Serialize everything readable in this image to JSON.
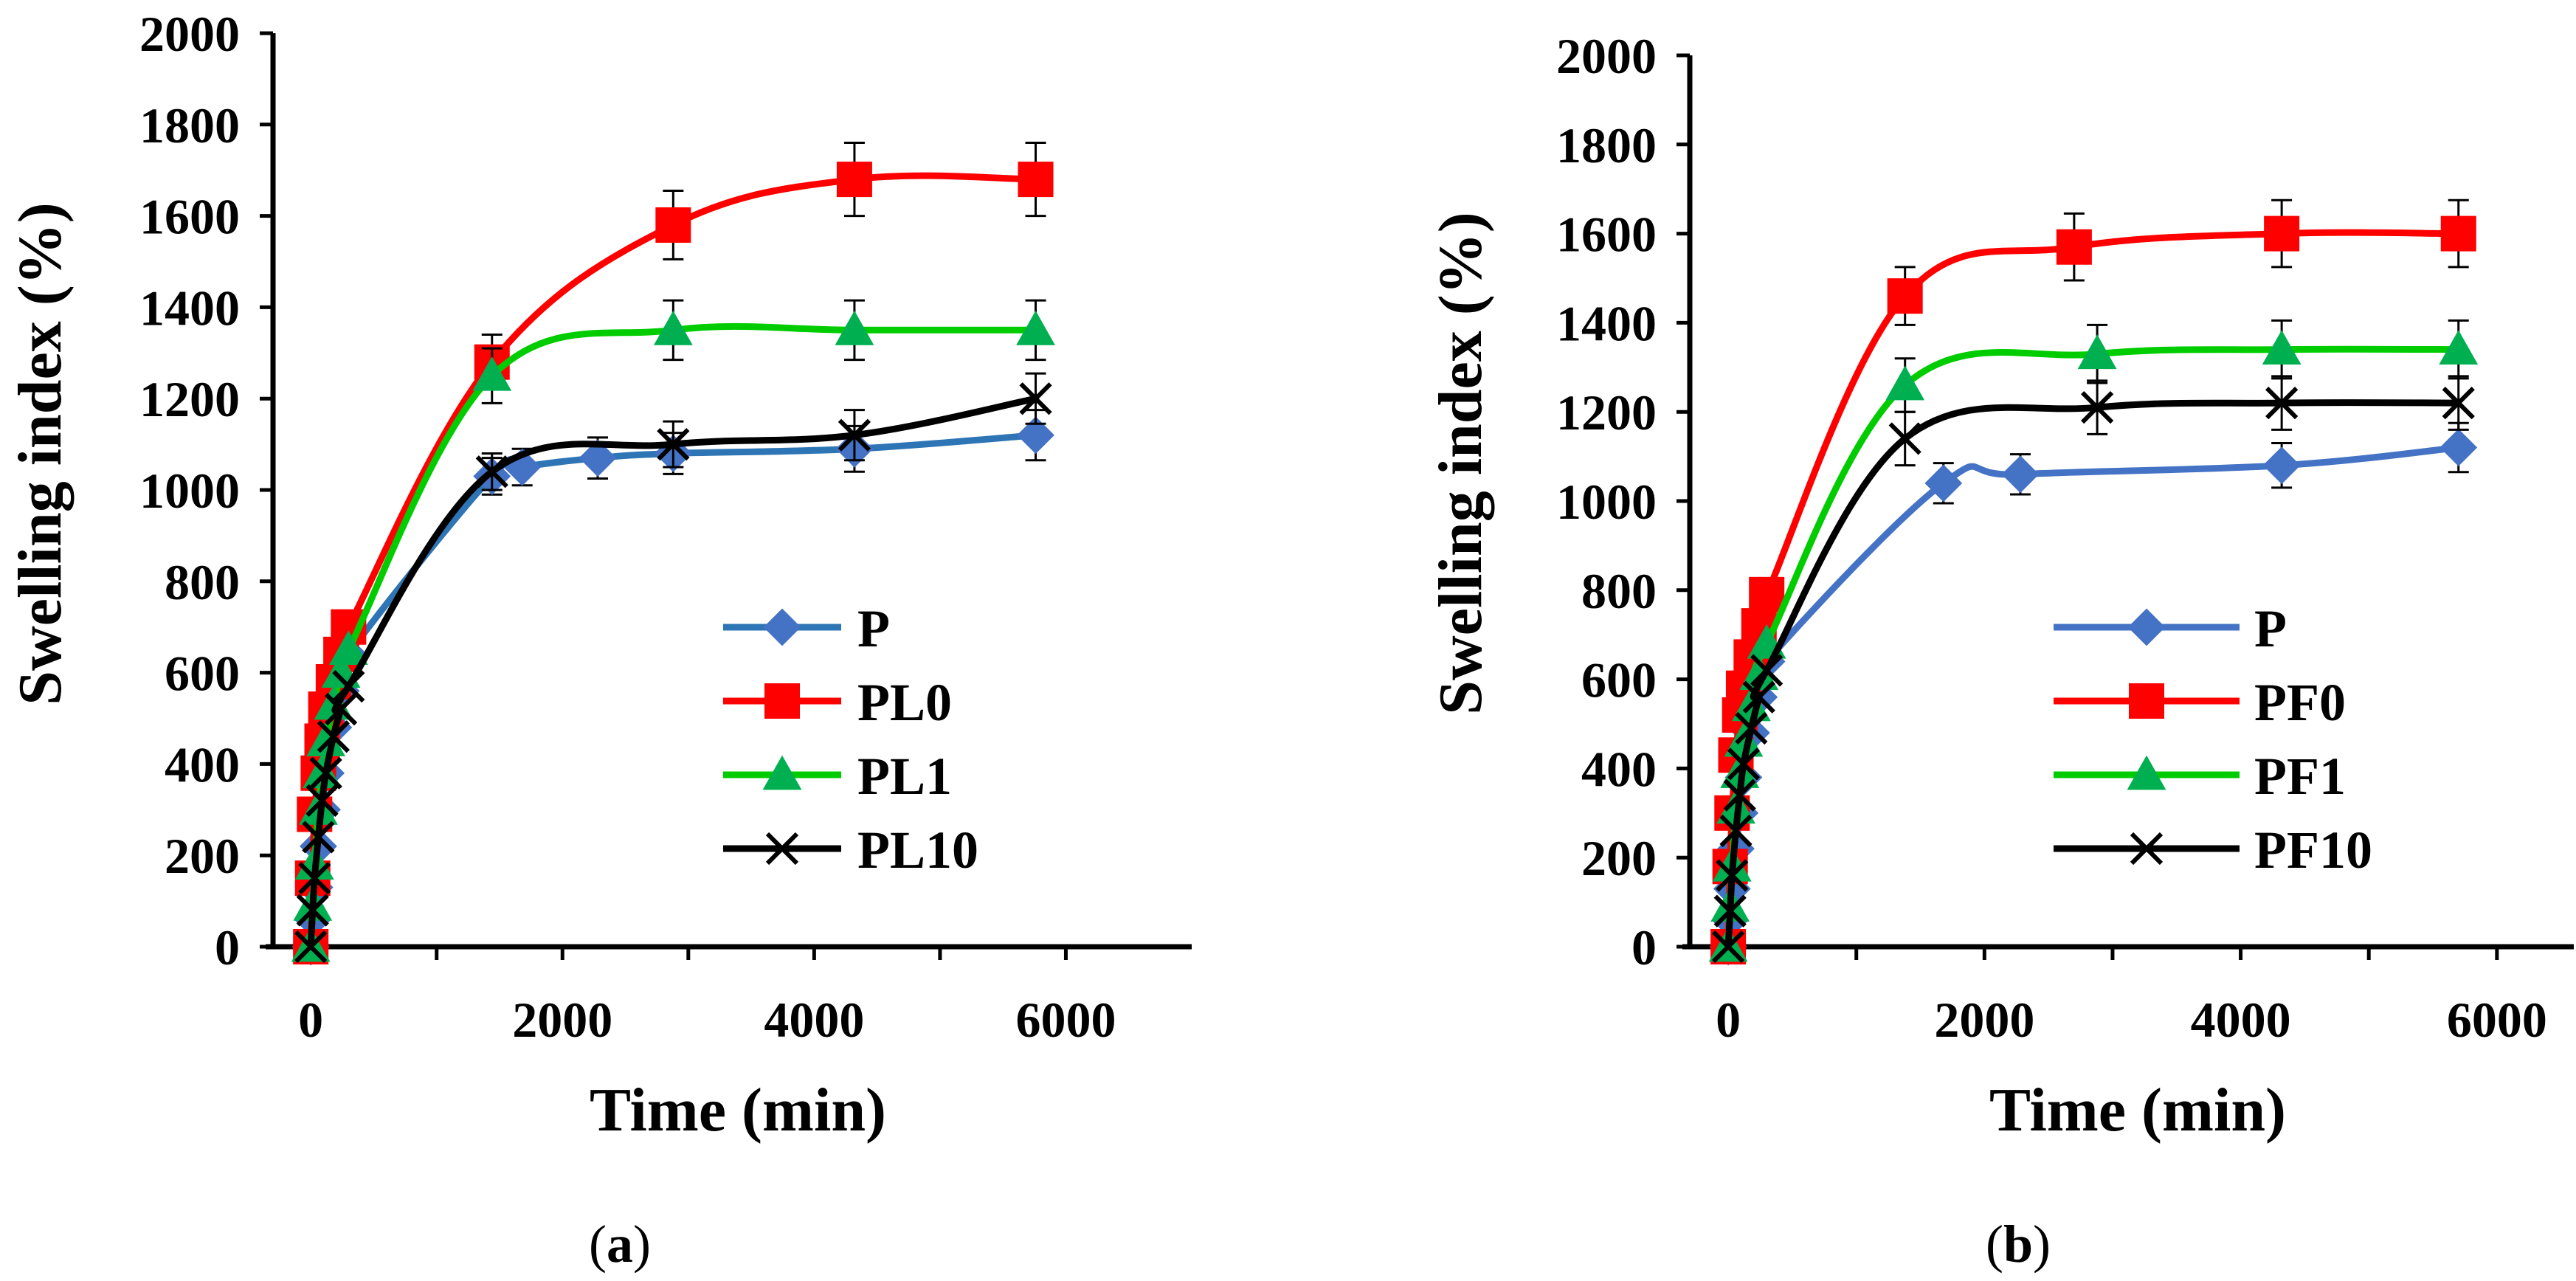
{
  "chart_data": [
    {
      "type": "line",
      "panel_label": "(a)",
      "panel_letter": "a",
      "xlabel": "Time (min)",
      "ylabel": "Swelling index (%)",
      "xlim": [
        -300,
        7000
      ],
      "ylim": [
        0,
        2000
      ],
      "xticks": [
        0,
        2000,
        4000,
        6000
      ],
      "yticks": [
        0,
        200,
        400,
        600,
        800,
        1000,
        1200,
        1400,
        1600,
        1800,
        2000
      ],
      "legend_position": "bottom-right",
      "series": [
        {
          "name": "P",
          "color": "#4472C4",
          "line_color": "#2E75B6",
          "marker": "diamond",
          "x": [
            0,
            15,
            30,
            60,
            90,
            120,
            180,
            240,
            300,
            1440,
            1680,
            2280,
            2880,
            4320,
            5760
          ],
          "y": [
            0,
            60,
            130,
            220,
            300,
            380,
            480,
            560,
            640,
            1030,
            1050,
            1070,
            1080,
            1090,
            1120
          ],
          "err": [
            0,
            0,
            0,
            0,
            0,
            0,
            0,
            0,
            0,
            40,
            40,
            45,
            45,
            50,
            55
          ]
        },
        {
          "name": "PL0",
          "color": "#FF0000",
          "line_color": "#FF0000",
          "marker": "square",
          "x": [
            0,
            15,
            30,
            60,
            90,
            120,
            180,
            240,
            300,
            1440,
            2880,
            4320,
            5760
          ],
          "y": [
            0,
            150,
            290,
            380,
            450,
            520,
            580,
            640,
            700,
            1280,
            1580,
            1680,
            1680
          ],
          "err": [
            0,
            0,
            0,
            0,
            0,
            0,
            0,
            0,
            0,
            60,
            75,
            80,
            80
          ]
        },
        {
          "name": "PL1",
          "color": "#00B050",
          "line_color": "#00CC00",
          "marker": "triangle",
          "x": [
            0,
            15,
            30,
            60,
            90,
            120,
            180,
            240,
            300,
            1440,
            2880,
            4320,
            5760
          ],
          "y": [
            0,
            90,
            180,
            300,
            380,
            450,
            530,
            600,
            650,
            1250,
            1350,
            1350,
            1350
          ],
          "err": [
            0,
            0,
            0,
            0,
            0,
            0,
            0,
            0,
            0,
            60,
            65,
            65,
            65
          ]
        },
        {
          "name": "PL10",
          "color": "#000000",
          "line_color": "#000000",
          "marker": "x",
          "x": [
            0,
            15,
            30,
            60,
            90,
            120,
            180,
            240,
            300,
            1440,
            2880,
            4320,
            5760
          ],
          "y": [
            0,
            80,
            150,
            240,
            320,
            380,
            460,
            520,
            570,
            1040,
            1100,
            1120,
            1200
          ],
          "err": [
            0,
            0,
            0,
            0,
            0,
            0,
            0,
            0,
            0,
            40,
            50,
            55,
            55
          ]
        }
      ]
    },
    {
      "type": "line",
      "panel_label": "(b)",
      "panel_letter": "b",
      "xlabel": "Time (min)",
      "ylabel": "Swelling index (%)",
      "xlim": [
        -300,
        6600
      ],
      "ylim": [
        0,
        2000
      ],
      "xticks": [
        0,
        2000,
        4000,
        6000
      ],
      "yticks": [
        0,
        200,
        400,
        600,
        800,
        1000,
        1200,
        1400,
        1600,
        1800,
        2000
      ],
      "legend_position": "bottom-right",
      "series": [
        {
          "name": "P",
          "color": "#4472C4",
          "line_color": "#4472C4",
          "marker": "diamond",
          "x": [
            0,
            15,
            30,
            60,
            90,
            120,
            180,
            240,
            300,
            1680,
            2280,
            4320,
            5700
          ],
          "y": [
            0,
            60,
            130,
            220,
            300,
            380,
            480,
            560,
            640,
            1040,
            1060,
            1080,
            1120
          ],
          "err": [
            0,
            0,
            0,
            0,
            0,
            0,
            0,
            0,
            0,
            45,
            45,
            50,
            55
          ]
        },
        {
          "name": "PF0",
          "color": "#FF0000",
          "line_color": "#FF0000",
          "marker": "square",
          "x": [
            0,
            15,
            30,
            60,
            90,
            120,
            180,
            240,
            300,
            1380,
            2700,
            4320,
            5700
          ],
          "y": [
            0,
            180,
            300,
            430,
            520,
            580,
            650,
            720,
            790,
            1460,
            1570,
            1600,
            1600
          ],
          "err": [
            0,
            0,
            0,
            0,
            0,
            0,
            0,
            0,
            0,
            65,
            75,
            75,
            75
          ]
        },
        {
          "name": "PF1",
          "color": "#00B050",
          "line_color": "#00CC00",
          "marker": "triangle",
          "x": [
            0,
            15,
            30,
            60,
            90,
            120,
            180,
            240,
            300,
            1380,
            2880,
            4320,
            5700
          ],
          "y": [
            0,
            90,
            180,
            310,
            390,
            460,
            540,
            610,
            680,
            1260,
            1330,
            1340,
            1340
          ],
          "err": [
            0,
            0,
            0,
            0,
            0,
            0,
            0,
            0,
            0,
            60,
            65,
            65,
            65
          ]
        },
        {
          "name": "PF10",
          "color": "#000000",
          "line_color": "#000000",
          "marker": "x",
          "x": [
            0,
            15,
            30,
            60,
            90,
            120,
            180,
            240,
            300,
            1380,
            2880,
            4320,
            5700
          ],
          "y": [
            0,
            80,
            160,
            260,
            340,
            410,
            490,
            560,
            620,
            1140,
            1210,
            1220,
            1220
          ],
          "err": [
            0,
            0,
            0,
            0,
            0,
            0,
            0,
            0,
            0,
            60,
            60,
            60,
            60
          ]
        }
      ]
    }
  ]
}
